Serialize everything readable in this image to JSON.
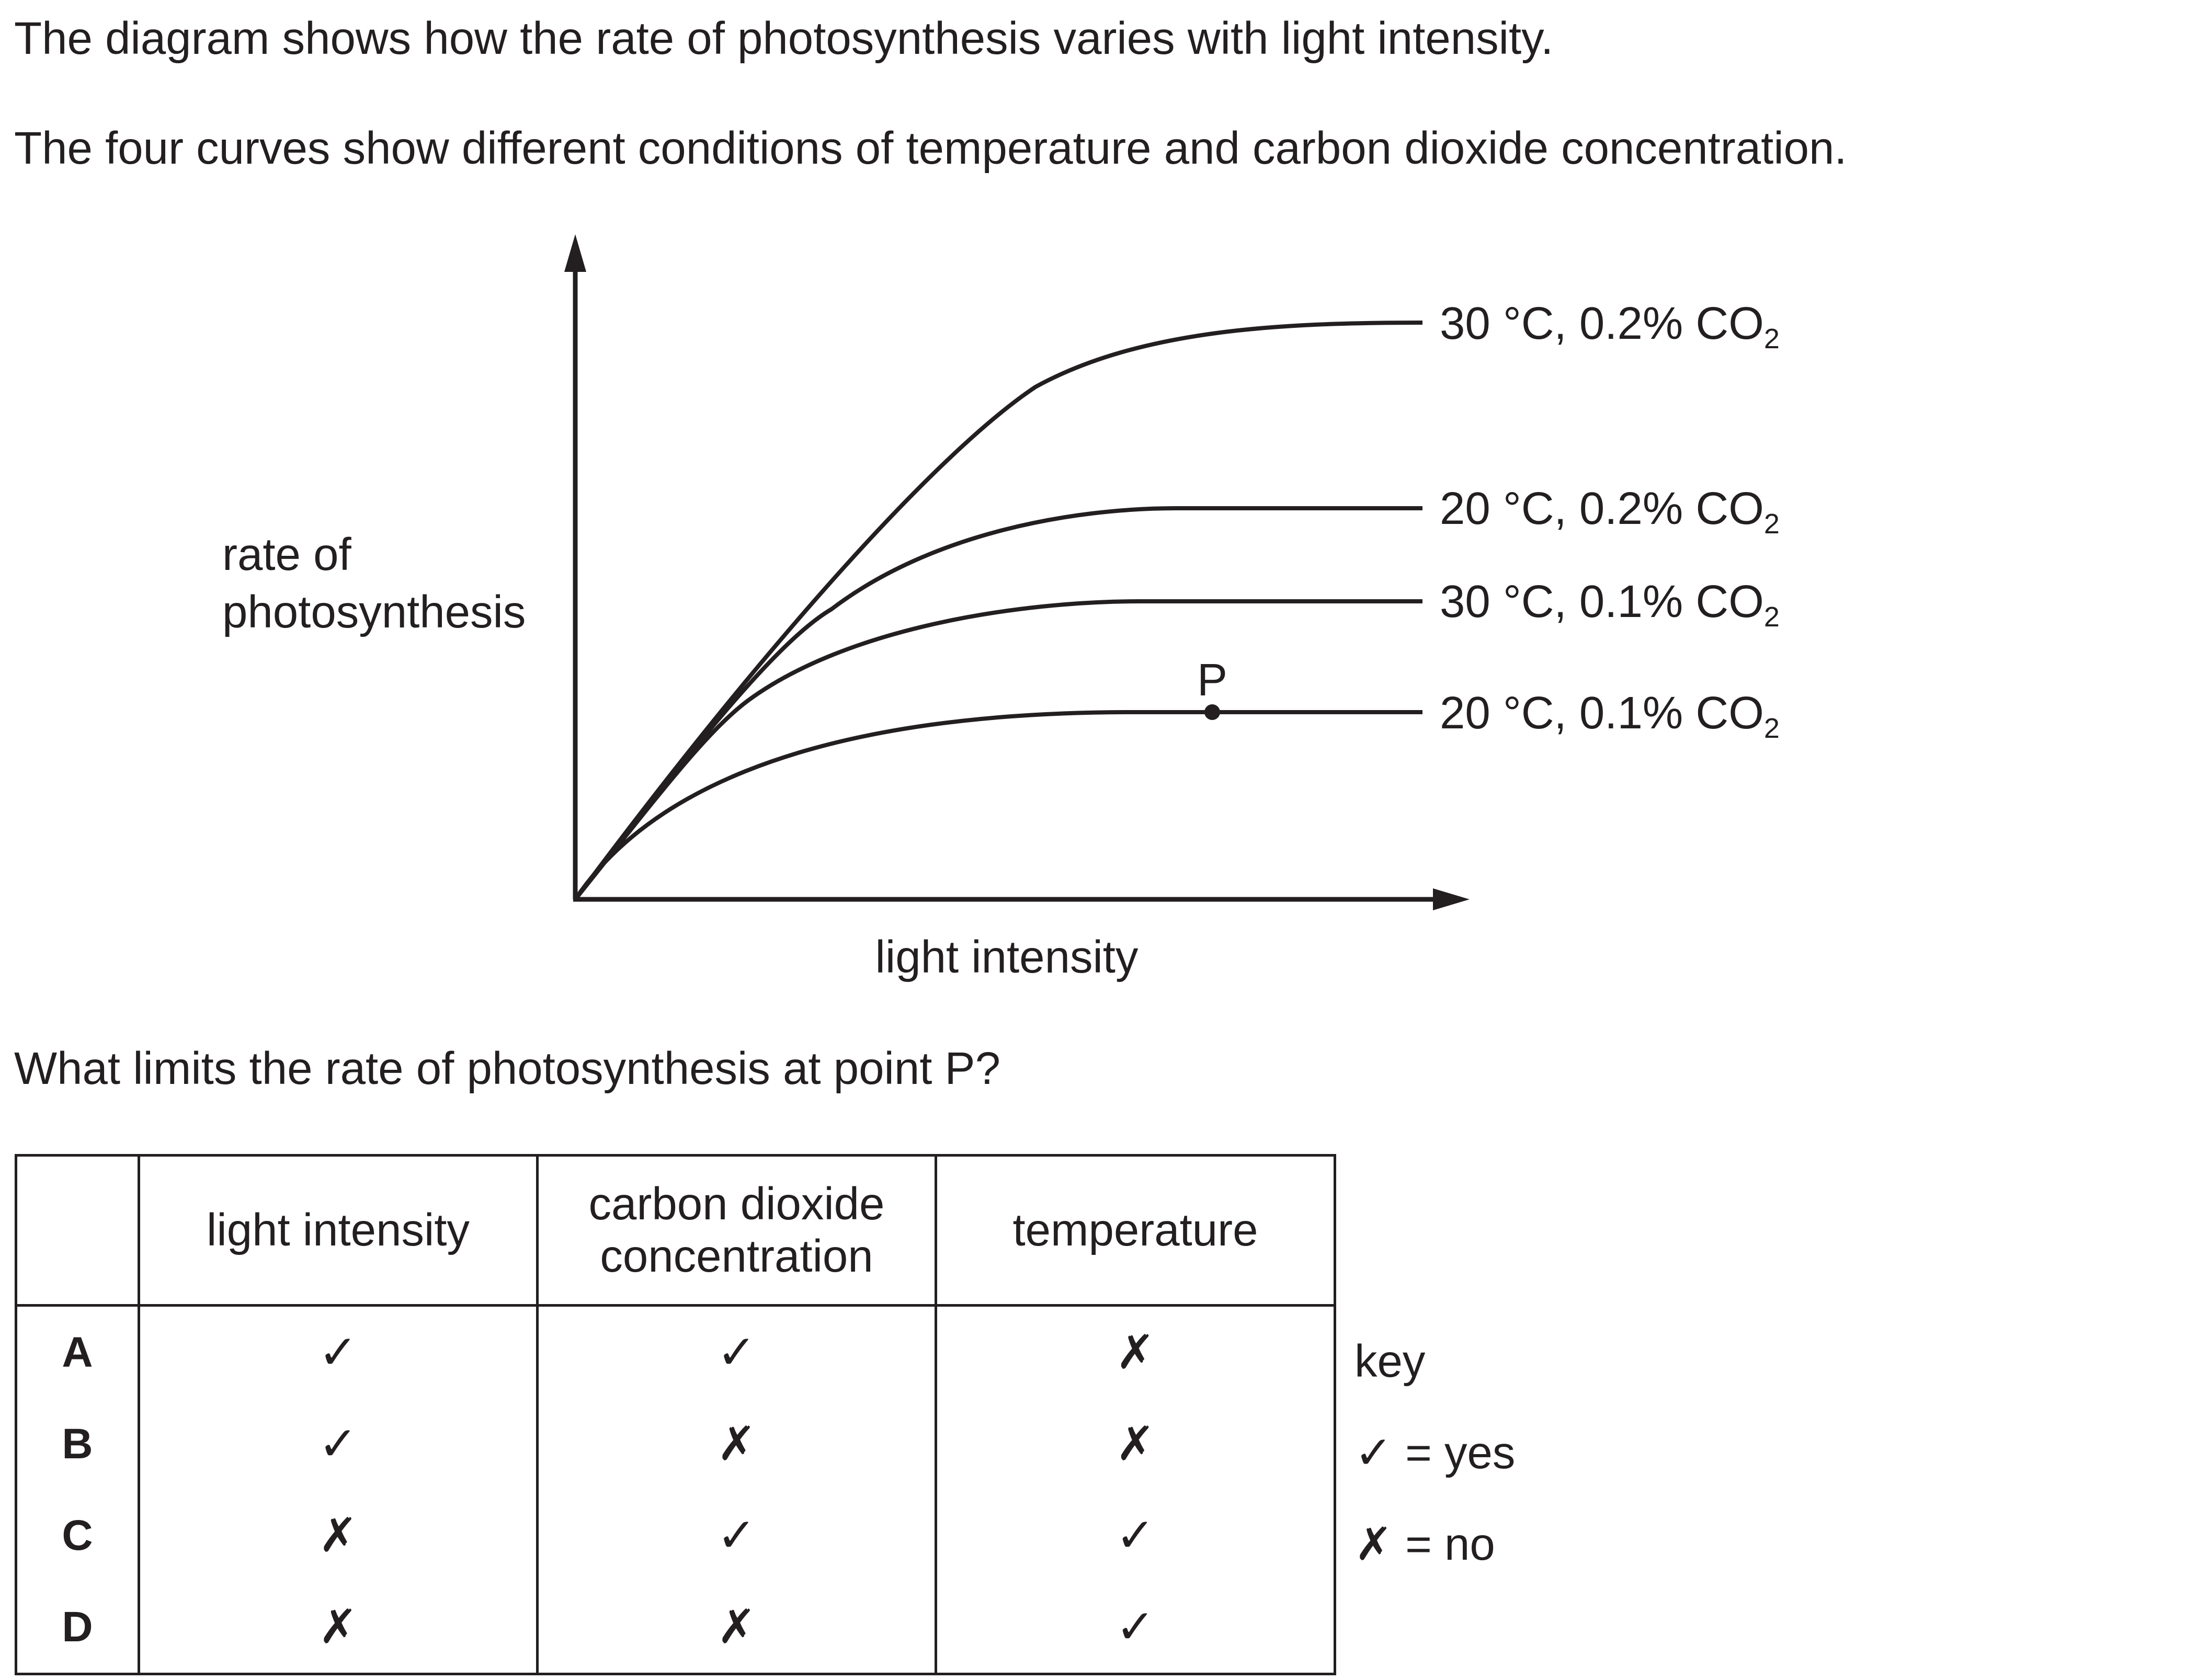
{
  "intro": {
    "line1": "The diagram shows how the rate of photosynthesis varies with light intensity.",
    "line2": "The four curves show different conditions of temperature and carbon dioxide concentration."
  },
  "chart_data": {
    "type": "line",
    "ylabel": [
      "rate of",
      "photosynthesis"
    ],
    "xlabel": "light intensity",
    "point_label": "P",
    "series": [
      {
        "name": "30 °C, 0.2% CO2",
        "temp": "30 °C,",
        "co2": "0.2% CO",
        "sub": "2"
      },
      {
        "name": "20 °C, 0.2% CO2",
        "temp": "20 °C,",
        "co2": "0.2% CO",
        "sub": "2"
      },
      {
        "name": "30 °C, 0.1% CO2",
        "temp": "30 °C,",
        "co2": "0.1% CO",
        "sub": "2"
      },
      {
        "name": "20 °C, 0.1% CO2",
        "temp": "20 °C,",
        "co2": "0.1% CO",
        "sub": "2"
      }
    ]
  },
  "question": "What limits the rate of photosynthesis at point P?",
  "table": {
    "headers": [
      "",
      "light intensity",
      [
        "carbon dioxide",
        "concentration"
      ],
      "temperature"
    ],
    "rows": [
      {
        "option": "A",
        "values": [
          "✓",
          "✓",
          "✗"
        ]
      },
      {
        "option": "B",
        "values": [
          "✓",
          "✗",
          "✗"
        ]
      },
      {
        "option": "C",
        "values": [
          "✗",
          "✓",
          "✓"
        ]
      },
      {
        "option": "D",
        "values": [
          "✗",
          "✗",
          "✓"
        ]
      }
    ]
  },
  "key": {
    "title": "key",
    "yes": "✓ = yes",
    "no": "✗ = no"
  }
}
